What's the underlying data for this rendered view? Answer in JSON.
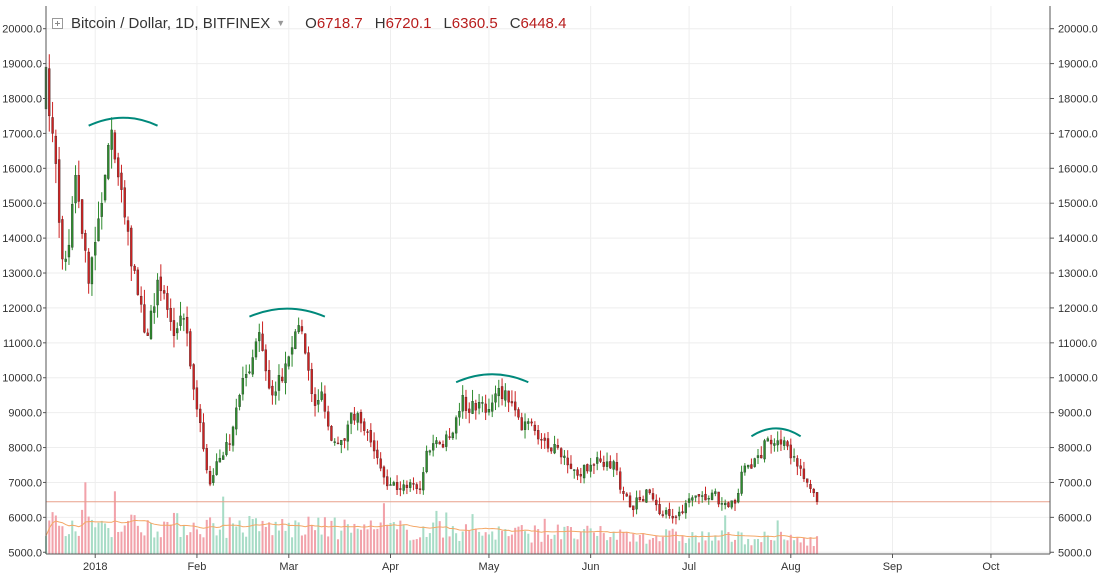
{
  "legend": {
    "title": "Bitcoin / Dollar, 1D, BITFINEX",
    "caret_icon": "triangle-down-icon",
    "ohlc": [
      {
        "k": "O",
        "v": "6718.7"
      },
      {
        "k": "H",
        "v": "6720.1"
      },
      {
        "k": "L",
        "v": "6360.5"
      },
      {
        "k": "C",
        "v": "6448.4"
      }
    ]
  },
  "colors": {
    "up": "#2e8b2e",
    "down": "#cc2222",
    "vol_up": "#a7dcc6",
    "vol_down": "#f2a2aa",
    "vol_ma": "#f4a766",
    "arc": "#00897b",
    "price_line": "#e8a08c",
    "grid": "#eeeeee",
    "axis": "#555555"
  },
  "chart_data": {
    "type": "candlestick",
    "y_ticks": [
      "5000.0",
      "6000.0",
      "7000.0",
      "8000.0",
      "9000.0",
      "10000.0",
      "11000.0",
      "12000.0",
      "13000.0",
      "14000.0",
      "15000.0",
      "16000.0",
      "17000.0",
      "18000.0",
      "19000.0",
      "20000.0"
    ],
    "ylim": [
      4950,
      20650
    ],
    "x_ticks": [
      "2018",
      "Feb",
      "Mar",
      "Apr",
      "May",
      "Jun",
      "Jul",
      "Aug",
      "Sep",
      "Oct"
    ],
    "x_start": "2017-12-17",
    "x_end": "2018-10-19",
    "close_line": 6448.4,
    "key_closes": [
      [
        "2017-12-17",
        18900
      ],
      [
        "2017-12-19",
        17000
      ],
      [
        "2017-12-22",
        13400
      ],
      [
        "2017-12-24",
        13800
      ],
      [
        "2017-12-26",
        15800
      ],
      [
        "2017-12-30",
        12700
      ],
      [
        "2018-01-03",
        15000
      ],
      [
        "2018-01-06",
        17100
      ],
      [
        "2018-01-10",
        14600
      ],
      [
        "2018-01-16",
        11300
      ],
      [
        "2018-01-17",
        11200
      ],
      [
        "2018-01-20",
        12800
      ],
      [
        "2018-01-25",
        11200
      ],
      [
        "2018-01-28",
        11700
      ],
      [
        "2018-02-01",
        9100
      ],
      [
        "2018-02-05",
        6950
      ],
      [
        "2018-02-07",
        7600
      ],
      [
        "2018-02-11",
        8100
      ],
      [
        "2018-02-14",
        9500
      ],
      [
        "2018-02-16",
        10100
      ],
      [
        "2018-02-20",
        11300
      ],
      [
        "2018-02-23",
        9700
      ],
      [
        "2018-02-25",
        9600
      ],
      [
        "2018-02-28",
        10400
      ],
      [
        "2018-03-04",
        11500
      ],
      [
        "2018-03-06",
        10700
      ],
      [
        "2018-03-09",
        9200
      ],
      [
        "2018-03-11",
        9600
      ],
      [
        "2018-03-14",
        8200
      ],
      [
        "2018-03-18",
        8200
      ],
      [
        "2018-03-20",
        9000
      ],
      [
        "2018-03-23",
        8700
      ],
      [
        "2018-03-27",
        7900
      ],
      [
        "2018-03-31",
        6900
      ],
      [
        "2018-04-04",
        6800
      ],
      [
        "2018-04-07",
        7000
      ],
      [
        "2018-04-10",
        6800
      ],
      [
        "2018-04-12",
        7900
      ],
      [
        "2018-04-16",
        8100
      ],
      [
        "2018-04-19",
        8300
      ],
      [
        "2018-04-23",
        9500
      ],
      [
        "2018-04-25",
        9000
      ],
      [
        "2018-04-28",
        9300
      ],
      [
        "2018-05-01",
        9100
      ],
      [
        "2018-05-04",
        9700
      ],
      [
        "2018-05-07",
        9300
      ],
      [
        "2018-05-11",
        8500
      ],
      [
        "2018-05-14",
        8700
      ],
      [
        "2018-05-18",
        8200
      ],
      [
        "2018-05-22",
        8000
      ],
      [
        "2018-05-25",
        7500
      ],
      [
        "2018-05-28",
        7200
      ],
      [
        "2018-06-01",
        7500
      ],
      [
        "2018-06-04",
        7600
      ],
      [
        "2018-06-08",
        7600
      ],
      [
        "2018-06-10",
        6800
      ],
      [
        "2018-06-13",
        6300
      ],
      [
        "2018-06-16",
        6500
      ],
      [
        "2018-06-19",
        6700
      ],
      [
        "2018-06-22",
        6100
      ],
      [
        "2018-06-24",
        6200
      ],
      [
        "2018-06-27",
        6000
      ],
      [
        "2018-06-30",
        6400
      ],
      [
        "2018-07-04",
        6600
      ],
      [
        "2018-07-08",
        6700
      ],
      [
        "2018-07-11",
        6400
      ],
      [
        "2018-07-13",
        6300
      ],
      [
        "2018-07-15",
        6400
      ],
      [
        "2018-07-17",
        7300
      ],
      [
        "2018-07-20",
        7400
      ],
      [
        "2018-07-23",
        7700
      ],
      [
        "2018-07-24",
        8200
      ],
      [
        "2018-07-26",
        8100
      ],
      [
        "2018-07-28",
        8200
      ],
      [
        "2018-07-30",
        8200
      ],
      [
        "2018-08-01",
        7700
      ],
      [
        "2018-08-04",
        7400
      ],
      [
        "2018-08-06",
        7000
      ],
      [
        "2018-08-08",
        6700
      ],
      [
        "2018-08-09",
        6448.4
      ]
    ],
    "volume_scale": "relative",
    "arcs": [
      {
        "from": "2017-12-30",
        "to": "2018-01-20",
        "peak": 17450
      },
      {
        "from": "2018-02-17",
        "to": "2018-03-12",
        "peak": 11980
      },
      {
        "from": "2018-04-21",
        "to": "2018-05-13",
        "peak": 10100
      },
      {
        "from": "2018-07-20",
        "to": "2018-08-04",
        "peak": 8550
      }
    ]
  }
}
